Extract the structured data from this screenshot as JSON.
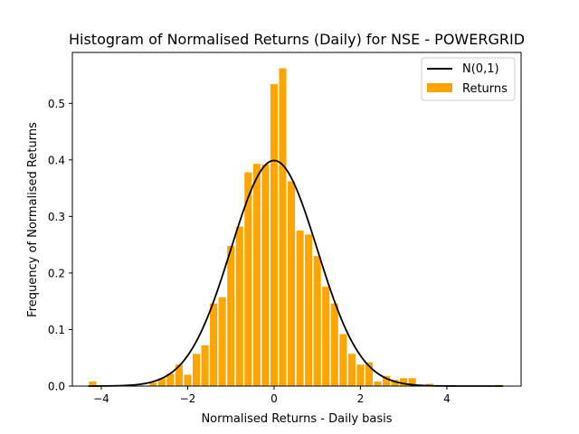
{
  "chart_data": {
    "type": "bar",
    "title": "Histogram of Normalised Returns (Daily) for NSE - POWERGRID",
    "xlabel": "Normalised Returns - Daily basis",
    "ylabel": "Frequency of Normalised Returns",
    "xlim": [
      -4.67,
      5.72
    ],
    "ylim": [
      0,
      0.59
    ],
    "xticks": [
      -4,
      -2,
      0,
      2,
      4
    ],
    "yticks": [
      0.0,
      0.1,
      0.2,
      0.3,
      0.4,
      0.5
    ],
    "ytick_labels": [
      "0.0",
      "0.1",
      "0.2",
      "0.3",
      "0.4",
      "0.5"
    ],
    "grid": false,
    "legend": {
      "placement": "top-right",
      "entries": [
        "N(0,1)",
        "Returns"
      ]
    },
    "colors": {
      "bars": "#FFA500",
      "curve": "#000000"
    },
    "bin_width": 0.2,
    "series": [
      {
        "name": "Returns",
        "type": "histogram",
        "bins": [
          {
            "x": -4.2,
            "y": 0.008
          },
          {
            "x": -3.8,
            "y": 0.0
          },
          {
            "x": -3.6,
            "y": 0.001
          },
          {
            "x": -3.4,
            "y": 0.0
          },
          {
            "x": -3.2,
            "y": 0.0
          },
          {
            "x": -3.0,
            "y": 0.001
          },
          {
            "x": -2.8,
            "y": 0.006
          },
          {
            "x": -2.6,
            "y": 0.014
          },
          {
            "x": -2.4,
            "y": 0.022
          },
          {
            "x": -2.2,
            "y": 0.038
          },
          {
            "x": -2.0,
            "y": 0.02
          },
          {
            "x": -1.8,
            "y": 0.057
          },
          {
            "x": -1.6,
            "y": 0.072
          },
          {
            "x": -1.4,
            "y": 0.146
          },
          {
            "x": -1.2,
            "y": 0.157
          },
          {
            "x": -1.0,
            "y": 0.248
          },
          {
            "x": -0.8,
            "y": 0.282
          },
          {
            "x": -0.6,
            "y": 0.378
          },
          {
            "x": -0.4,
            "y": 0.393
          },
          {
            "x": -0.2,
            "y": 0.392
          },
          {
            "x": 0.0,
            "y": 0.534
          },
          {
            "x": 0.2,
            "y": 0.562
          },
          {
            "x": 0.4,
            "y": 0.362
          },
          {
            "x": 0.6,
            "y": 0.275
          },
          {
            "x": 0.8,
            "y": 0.268
          },
          {
            "x": 1.0,
            "y": 0.23
          },
          {
            "x": 1.2,
            "y": 0.176
          },
          {
            "x": 1.4,
            "y": 0.146
          },
          {
            "x": 1.6,
            "y": 0.092
          },
          {
            "x": 1.8,
            "y": 0.057
          },
          {
            "x": 2.0,
            "y": 0.038
          },
          {
            "x": 2.2,
            "y": 0.042
          },
          {
            "x": 2.4,
            "y": 0.008
          },
          {
            "x": 2.6,
            "y": 0.018
          },
          {
            "x": 2.8,
            "y": 0.011
          },
          {
            "x": 3.0,
            "y": 0.014
          },
          {
            "x": 3.2,
            "y": 0.014
          },
          {
            "x": 3.4,
            "y": 0.0
          },
          {
            "x": 3.6,
            "y": 0.004
          },
          {
            "x": 3.8,
            "y": 0.001
          },
          {
            "x": 5.2,
            "y": 0.002
          }
        ]
      },
      {
        "name": "N(0,1)",
        "type": "line",
        "function": "normal_pdf",
        "mean": 0,
        "std": 1,
        "x_range": [
          -4.3,
          5.3
        ]
      }
    ]
  }
}
